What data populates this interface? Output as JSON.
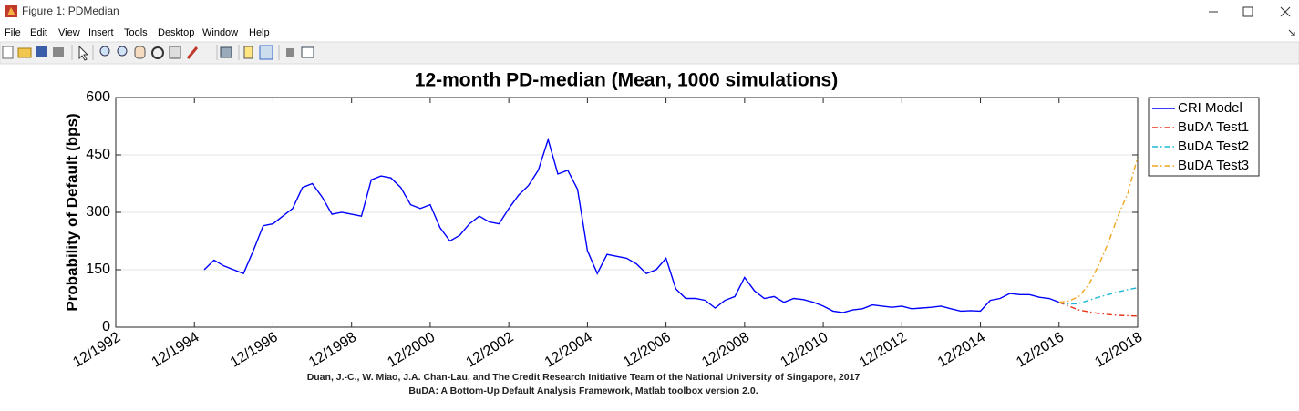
{
  "window": {
    "title": "Figure 1: PDMedian",
    "menu": [
      "File",
      "Edit",
      "View",
      "Insert",
      "Tools",
      "Desktop",
      "Window",
      "Help"
    ]
  },
  "chart_data": {
    "type": "line",
    "title": "12-month PD-median (Mean, 1000 simulations)",
    "y_label": "Probability of Default (bps)",
    "xlim": [
      "12/1992",
      "12/2018"
    ],
    "xticks": [
      "12/1992",
      "12/1994",
      "12/1996",
      "12/1998",
      "12/2000",
      "12/2002",
      "12/2004",
      "12/2006",
      "12/2008",
      "12/2010",
      "12/2012",
      "12/2014",
      "12/2016",
      "12/2018"
    ],
    "ylim": [
      0,
      600
    ],
    "yticks": [
      0,
      150,
      300,
      450,
      600
    ],
    "ygrid": true,
    "legend_position": "outside-right",
    "series": [
      {
        "name": "CRI Model",
        "color": "#0000ff",
        "linestyle": "solid",
        "x": [
          "03/1995",
          "06/1995",
          "09/1995",
          "12/1995",
          "03/1996",
          "06/1996",
          "09/1996",
          "12/1996",
          "03/1997",
          "06/1997",
          "09/1997",
          "12/1997",
          "03/1998",
          "06/1998",
          "09/1998",
          "12/1998",
          "03/1999",
          "06/1999",
          "09/1999",
          "12/1999",
          "03/2000",
          "06/2000",
          "09/2000",
          "12/2000",
          "03/2001",
          "06/2001",
          "09/2001",
          "12/2001",
          "03/2002",
          "06/2002",
          "09/2002",
          "12/2002",
          "03/2003",
          "06/2003",
          "09/2003",
          "12/2003",
          "03/2004",
          "06/2004",
          "09/2004",
          "12/2004",
          "03/2005",
          "06/2005",
          "09/2005",
          "12/2005",
          "03/2006",
          "06/2006",
          "09/2006",
          "12/2006",
          "03/2007",
          "06/2007",
          "09/2007",
          "12/2007",
          "03/2008",
          "06/2008",
          "09/2008",
          "12/2008",
          "03/2009",
          "06/2009",
          "09/2009",
          "12/2009",
          "03/2010",
          "06/2010",
          "09/2010",
          "12/2010",
          "03/2011",
          "06/2011",
          "09/2011",
          "12/2011",
          "03/2012",
          "06/2012",
          "09/2012",
          "12/2012",
          "03/2013",
          "06/2013",
          "09/2013",
          "12/2013",
          "03/2014",
          "06/2014",
          "09/2014",
          "12/2014",
          "03/2015",
          "06/2015",
          "09/2015",
          "12/2015",
          "03/2016",
          "06/2016",
          "09/2016",
          "12/2016"
        ],
        "values": [
          150,
          175,
          160,
          150,
          140,
          200,
          265,
          270,
          290,
          310,
          365,
          375,
          340,
          295,
          300,
          295,
          290,
          385,
          395,
          390,
          365,
          320,
          310,
          320,
          260,
          225,
          240,
          270,
          290,
          275,
          270,
          310,
          345,
          370,
          410,
          490,
          400,
          410,
          360,
          200,
          140,
          190,
          185,
          180,
          165,
          140,
          150,
          180,
          100,
          75,
          75,
          70,
          50,
          70,
          80,
          130,
          95,
          75,
          80,
          65,
          75,
          72,
          65,
          55,
          42,
          38,
          45,
          48,
          58,
          55,
          52,
          55,
          48,
          50,
          52,
          55,
          48,
          42,
          43,
          42,
          70,
          75,
          88,
          85,
          85,
          78,
          75,
          65
        ]
      },
      {
        "name": "BuDA Test1",
        "color": "#e8331a",
        "linestyle": "dashdot",
        "x": [
          "12/2016",
          "03/2017",
          "06/2017",
          "09/2017",
          "12/2017",
          "03/2018",
          "06/2018",
          "09/2018",
          "12/2018"
        ],
        "values": [
          65,
          55,
          45,
          40,
          36,
          33,
          31,
          30,
          29
        ]
      },
      {
        "name": "BuDA Test2",
        "color": "#1ab8d2",
        "linestyle": "dashdot",
        "x": [
          "12/2016",
          "03/2017",
          "06/2017",
          "09/2017",
          "12/2017",
          "03/2018",
          "06/2018",
          "09/2018",
          "12/2018"
        ],
        "values": [
          65,
          60,
          62,
          70,
          78,
          85,
          92,
          98,
          103
        ]
      },
      {
        "name": "BuDA Test3",
        "color": "#eea720",
        "linestyle": "dashdot",
        "x": [
          "12/2016",
          "03/2017",
          "06/2017",
          "09/2017",
          "12/2017",
          "03/2018",
          "06/2018",
          "09/2018",
          "12/2018"
        ],
        "values": [
          65,
          68,
          80,
          110,
          160,
          220,
          290,
          350,
          445
        ]
      }
    ]
  },
  "footer": [
    "Duan, J.-C., W. Miao, J.A. Chan-Lau, and The Credit Research Initiative Team of the National University of Singapore, 2017",
    "BuDA: A Bottom-Up Default Analysis Framework, Matlab toolbox version 2.0."
  ]
}
